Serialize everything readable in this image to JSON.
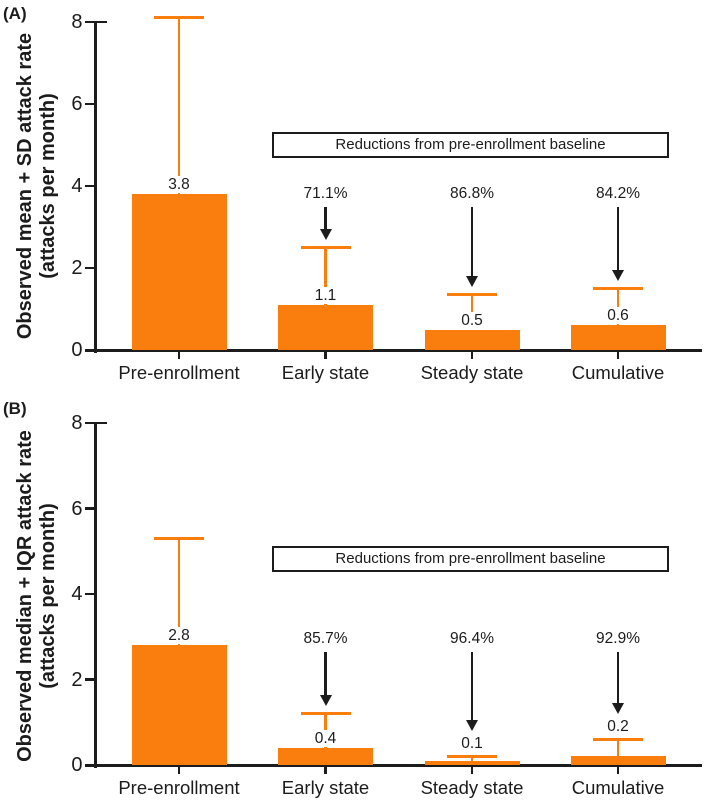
{
  "figure": {
    "background": "#ffffff",
    "bar_color": "#F97E0E",
    "error_bar_color": "#F97E0E",
    "axis_color": "#1C1C1C",
    "text_color": "#1C1C1C"
  },
  "chart_data": [
    {
      "type": "bar",
      "panel_label": "(A)",
      "ylabel": "Observed mean + SD attack rate",
      "ylabel_line2": "(attacks per month)",
      "ylim": [
        0,
        8
      ],
      "yticks": [
        "8",
        "6",
        "4",
        "2",
        "0"
      ],
      "ytick_values": [
        8,
        6,
        4,
        2,
        0
      ],
      "grid": false,
      "categories": [
        "Pre-enrollment",
        "Early state",
        "Steady state",
        "Cumulative"
      ],
      "values": [
        3.8,
        1.1,
        0.5,
        0.6
      ],
      "value_labels": [
        "3.8",
        "1.1",
        "0.5",
        "0.6"
      ],
      "error_upper": [
        8.1,
        2.5,
        1.35,
        1.5
      ],
      "reduction_labels": [
        null,
        "71.1%",
        "86.8%",
        "84.2%"
      ],
      "annotation": "Reductions from pre-enrollment baseline"
    },
    {
      "type": "bar",
      "panel_label": "(B)",
      "ylabel": "Observed median + IQR attack rate",
      "ylabel_line2": "(attacks per month)",
      "ylim": [
        0,
        8
      ],
      "yticks": [
        "8",
        "6",
        "4",
        "2",
        "0"
      ],
      "ytick_values": [
        8,
        6,
        4,
        2,
        0
      ],
      "grid": false,
      "categories": [
        "Pre-enrollment",
        "Early state",
        "Steady state",
        "Cumulative"
      ],
      "values": [
        2.8,
        0.4,
        0.1,
        0.2
      ],
      "value_labels": [
        "2.8",
        "0.4",
        "0.1",
        "0.2"
      ],
      "error_upper": [
        5.3,
        1.2,
        0.2,
        0.6
      ],
      "reduction_labels": [
        null,
        "85.7%",
        "96.4%",
        "92.9%"
      ],
      "annotation": "Reductions from pre-enrollment baseline"
    }
  ]
}
